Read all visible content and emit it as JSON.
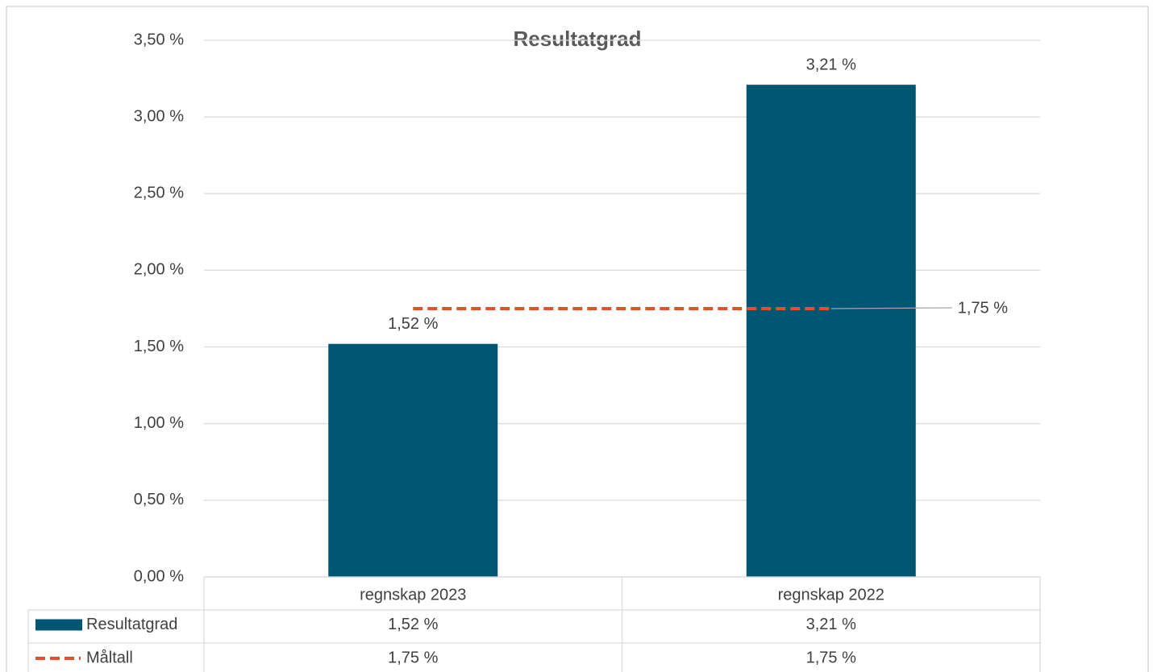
{
  "chart_data": {
    "type": "bar",
    "title": "Resultatgrad",
    "categories": [
      "regnskap 2023",
      "regnskap 2022"
    ],
    "series": [
      {
        "name": "Resultatgrad",
        "type": "bar",
        "color": "#005673",
        "values": [
          1.52,
          3.21
        ],
        "value_labels": [
          "1,52 %",
          "3,21 %"
        ]
      },
      {
        "name": "Måltall",
        "type": "line",
        "dashed": true,
        "color": "#e0522a",
        "values": [
          1.75,
          1.75
        ],
        "value_labels": [
          "1,75 %",
          "1,75 %"
        ]
      }
    ],
    "ylim": [
      0,
      3.5
    ],
    "yticks": [
      {
        "value": 0,
        "label": "0,00 %"
      },
      {
        "value": 0.5,
        "label": "0,50 %"
      },
      {
        "value": 1,
        "label": "1,00 %"
      },
      {
        "value": 1.5,
        "label": "1,50 %"
      },
      {
        "value": 2,
        "label": "2,00 %"
      },
      {
        "value": 2.5,
        "label": "2,50 %"
      },
      {
        "value": 3,
        "label": "3,00 %"
      },
      {
        "value": 3.5,
        "label": "3,50 %"
      }
    ],
    "grid": true,
    "data_table": true
  }
}
